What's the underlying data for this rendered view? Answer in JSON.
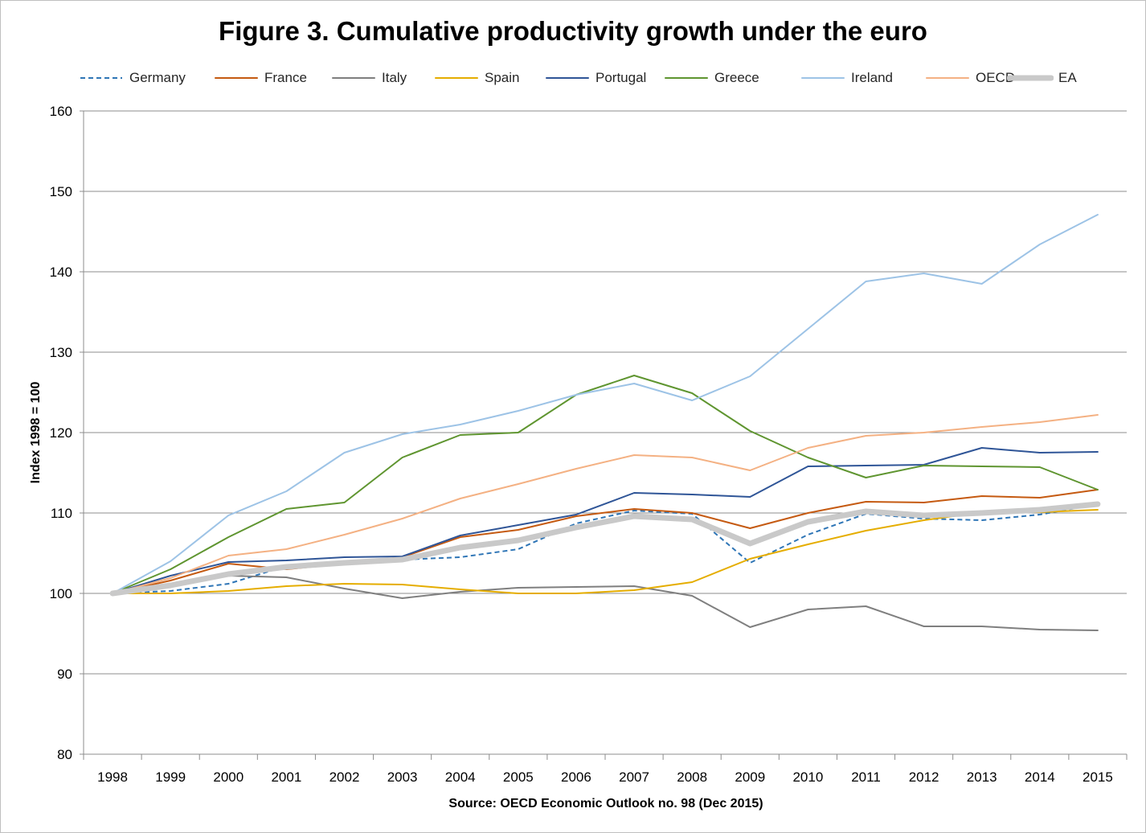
{
  "chart_data": {
    "type": "line",
    "title": "Figure 3. Cumulative productivity growth under the euro",
    "xlabel": "Source: OECD Economic Outlook no. 98 (Dec 2015)",
    "ylabel": "Index 1998 = 100",
    "ylim": [
      80,
      160
    ],
    "yticks": [
      80,
      90,
      100,
      110,
      120,
      130,
      140,
      150,
      160
    ],
    "grid": true,
    "legend_position": "top",
    "categories": [
      "1998",
      "1999",
      "2000",
      "2001",
      "2002",
      "2003",
      "2004",
      "2005",
      "2006",
      "2007",
      "2008",
      "2009",
      "2010",
      "2011",
      "2012",
      "2013",
      "2014",
      "2015"
    ],
    "series": [
      {
        "name": "Germany",
        "color": "#2e75b6",
        "dash": "dashed",
        "width": 2,
        "values": [
          100,
          100.3,
          101.2,
          103.4,
          103.7,
          104.2,
          104.5,
          105.5,
          108.7,
          110.3,
          109.9,
          103.8,
          107.3,
          109.9,
          109.3,
          109.1,
          109.8,
          111.1
        ]
      },
      {
        "name": "France",
        "color": "#c55a11",
        "dash": "solid",
        "width": 2,
        "values": [
          100,
          101.6,
          103.7,
          103.0,
          103.7,
          104.5,
          107.0,
          107.9,
          109.6,
          110.5,
          110.0,
          108.1,
          110.0,
          111.4,
          111.3,
          112.1,
          111.9,
          112.9
        ]
      },
      {
        "name": "Italy",
        "color": "#7f7f7f",
        "dash": "solid",
        "width": 2,
        "values": [
          100,
          101.0,
          102.2,
          102.0,
          100.6,
          99.4,
          100.2,
          100.7,
          100.8,
          100.9,
          99.7,
          95.8,
          98.0,
          98.4,
          95.9,
          95.9,
          95.5,
          95.4
        ]
      },
      {
        "name": "Spain",
        "color": "#e5ad00",
        "dash": "solid",
        "width": 2,
        "values": [
          100,
          100.0,
          100.3,
          100.9,
          101.2,
          101.1,
          100.5,
          100.0,
          100.0,
          100.4,
          101.4,
          104.3,
          106.1,
          107.8,
          109.1,
          110.1,
          110.1,
          110.4
        ]
      },
      {
        "name": "Portugal",
        "color": "#2f5597",
        "dash": "solid",
        "width": 2,
        "values": [
          100,
          102.2,
          103.9,
          104.1,
          104.5,
          104.6,
          107.2,
          108.5,
          109.8,
          112.5,
          112.3,
          112.0,
          115.8,
          115.9,
          116.0,
          118.1,
          117.5,
          117.6
        ]
      },
      {
        "name": "Greece",
        "color": "#5f9530",
        "dash": "solid",
        "width": 2,
        "values": [
          100,
          103.0,
          107.0,
          110.5,
          111.3,
          116.9,
          119.7,
          120.0,
          124.7,
          127.1,
          124.9,
          120.2,
          116.9,
          114.4,
          115.9,
          115.8,
          115.7,
          112.9
        ]
      },
      {
        "name": "Ireland",
        "color": "#9dc3e6",
        "dash": "solid",
        "width": 2,
        "values": [
          100,
          104.0,
          109.7,
          112.7,
          117.5,
          119.8,
          121.0,
          122.7,
          124.7,
          126.1,
          124.0,
          127.0,
          132.9,
          138.8,
          139.8,
          138.5,
          143.4,
          147.1
        ]
      },
      {
        "name": "OECD",
        "color": "#f4b183",
        "dash": "solid",
        "width": 2,
        "values": [
          100,
          101.9,
          104.7,
          105.5,
          107.3,
          109.3,
          111.8,
          113.6,
          115.5,
          117.2,
          116.9,
          115.3,
          118.1,
          119.6,
          120.0,
          120.7,
          121.3,
          122.2
        ]
      },
      {
        "name": "EA",
        "color": "#c9c9c9",
        "dash": "solid",
        "width": 7,
        "values": [
          100,
          101.0,
          102.4,
          103.3,
          103.8,
          104.2,
          105.7,
          106.6,
          108.2,
          109.6,
          109.2,
          106.2,
          108.9,
          110.2,
          109.7,
          110.0,
          110.4,
          111.1
        ]
      }
    ]
  }
}
